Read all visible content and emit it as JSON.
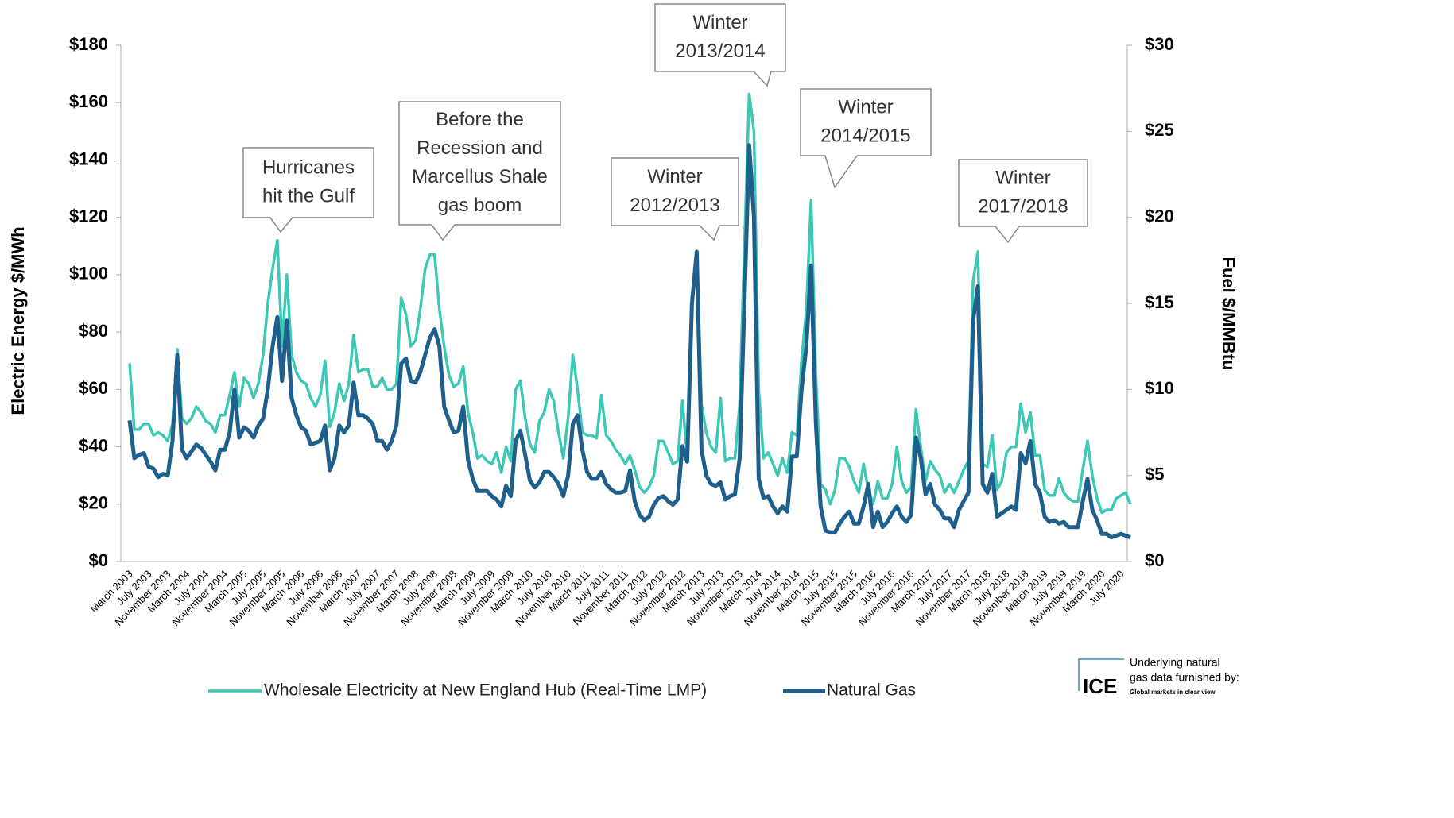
{
  "chart_data": {
    "type": "line",
    "ylabel": "Electric  Energy $/MWh",
    "y2label": "Fuel $/MMBtu",
    "ylim": [
      0,
      180
    ],
    "yticks": [
      {
        "value": 0,
        "label": "$0"
      },
      {
        "value": 20,
        "label": "$20"
      },
      {
        "value": 40,
        "label": "$40"
      },
      {
        "value": 60,
        "label": "$60"
      },
      {
        "value": 80,
        "label": "$80"
      },
      {
        "value": 100,
        "label": "$100"
      },
      {
        "value": 120,
        "label": "$120"
      },
      {
        "value": 140,
        "label": "$140"
      },
      {
        "value": 160,
        "label": "$160"
      },
      {
        "value": 180,
        "label": "$180"
      }
    ],
    "y2lim": [
      0,
      30
    ],
    "y2ticks": [
      {
        "value": 0,
        "label": "$0"
      },
      {
        "value": 5,
        "label": "$5"
      },
      {
        "value": 10,
        "label": "$10"
      },
      {
        "value": 15,
        "label": "$15"
      },
      {
        "value": 20,
        "label": "$20"
      },
      {
        "value": 25,
        "label": "$25"
      },
      {
        "value": 30,
        "label": "$30"
      }
    ],
    "categories": [
      "March 2003",
      null,
      null,
      null,
      "July 2003",
      null,
      null,
      null,
      "November 2003",
      null,
      null,
      null,
      "March 2004",
      null,
      null,
      null,
      "July 2004",
      null,
      null,
      null,
      "November 2004",
      null,
      null,
      null,
      "March 2005",
      null,
      null,
      null,
      "July 2005",
      null,
      null,
      null,
      "November 2005",
      null,
      null,
      null,
      "March 2006",
      null,
      null,
      null,
      "July 2006",
      null,
      null,
      null,
      "November 2006",
      null,
      null,
      null,
      "March 2007",
      null,
      null,
      null,
      "July 2007",
      null,
      null,
      null,
      "November 2007",
      null,
      null,
      null,
      "March 2008",
      null,
      null,
      null,
      "July 2008",
      null,
      null,
      null,
      "November 2008",
      null,
      null,
      null,
      "March 2009",
      null,
      null,
      null,
      "July 2009",
      null,
      null,
      null,
      "November 2009",
      null,
      null,
      null,
      "March 2010",
      null,
      null,
      null,
      "July 2010",
      null,
      null,
      null,
      "November 2010",
      null,
      null,
      null,
      "March 2011",
      null,
      null,
      null,
      "July 2011",
      null,
      null,
      null,
      "November 2011",
      null,
      null,
      null,
      "March 2012",
      null,
      null,
      null,
      "July 2012",
      null,
      null,
      null,
      "November 2012",
      null,
      null,
      null,
      "March 2013",
      null,
      null,
      null,
      "July 2013",
      null,
      null,
      null,
      "November 2013",
      null,
      null,
      null,
      "March 2014",
      null,
      null,
      null,
      "July 2014",
      null,
      null,
      null,
      "November 2014",
      null,
      null,
      null,
      "March 2015",
      null,
      null,
      null,
      "July 2015",
      null,
      null,
      null,
      "November 2015",
      null,
      null,
      null,
      "March 2016",
      null,
      null,
      null,
      "July 2016",
      null,
      null,
      null,
      "November 2016",
      null,
      null,
      null,
      "March 2017",
      null,
      null,
      null,
      "July 2017",
      null,
      null,
      null,
      "November 2017",
      null,
      null,
      null,
      "March 2018",
      null,
      null,
      null,
      "July 2018",
      null,
      null,
      null,
      "November 2018",
      null,
      null,
      null,
      "March 2019",
      null,
      null,
      null,
      "July 2019",
      null,
      null,
      null,
      "November 2019",
      null,
      null,
      null,
      "March 2020",
      null,
      null,
      null,
      "July 2020",
      null,
      null
    ],
    "series": [
      {
        "name": "Wholesale Electricity at New England Hub (Real-Time LMP)",
        "color": "#3cc8b4",
        "values": [
          69,
          46,
          46,
          48,
          48,
          44,
          45,
          44,
          42,
          48,
          74,
          50,
          48,
          50,
          54,
          52,
          49,
          48,
          45,
          51,
          51,
          58,
          66,
          54,
          64,
          62,
          57,
          62,
          72,
          90,
          102,
          112,
          75,
          100,
          72,
          66,
          63,
          62,
          57,
          54,
          58,
          70,
          47,
          52,
          62,
          56,
          62,
          79,
          66,
          67,
          67,
          61,
          61,
          64,
          60,
          60,
          62,
          92,
          86,
          75,
          77,
          88,
          102,
          107,
          107,
          88,
          75,
          65,
          61,
          62,
          68,
          52,
          45,
          36,
          37,
          35,
          34,
          38,
          31,
          40,
          35,
          60,
          63,
          50,
          41,
          38,
          49,
          52,
          60,
          56,
          45,
          36,
          50,
          72,
          60,
          45,
          44,
          44,
          43,
          58,
          44,
          42,
          39,
          37,
          34,
          37,
          32,
          26,
          24,
          26,
          30,
          42,
          42,
          38,
          34,
          35,
          56,
          37,
          90,
          108,
          55,
          45,
          40,
          38,
          57,
          35,
          36,
          36,
          55,
          110,
          163,
          150,
          60,
          36,
          38,
          34,
          30,
          36,
          31,
          45,
          44,
          70,
          88,
          126,
          65,
          27,
          25,
          20,
          25,
          36,
          36,
          33,
          28,
          24,
          34,
          25,
          20,
          28,
          22,
          22,
          27,
          40,
          28,
          24,
          26,
          53,
          40,
          28,
          35,
          32,
          30,
          24,
          27,
          24,
          28,
          32,
          35,
          98,
          108,
          34,
          33,
          44,
          25,
          28,
          38,
          40,
          40,
          55,
          45,
          52,
          37,
          37,
          25,
          23,
          23,
          29,
          24,
          22,
          21,
          21,
          32,
          42,
          30,
          22,
          17,
          18,
          18,
          22,
          23,
          24,
          20
        ]
      },
      {
        "name": "Natural Gas",
        "color": "#1f5f8b",
        "axis": "y2",
        "values": [
          8.2,
          6.0,
          6.2,
          6.3,
          5.5,
          5.4,
          4.9,
          5.1,
          5.0,
          7.0,
          12.0,
          6.5,
          6.0,
          6.4,
          6.8,
          6.6,
          6.2,
          5.8,
          5.3,
          6.5,
          6.5,
          7.5,
          10.0,
          7.2,
          7.8,
          7.6,
          7.2,
          7.9,
          8.3,
          10.0,
          12.5,
          14.2,
          10.5,
          14.0,
          9.5,
          8.5,
          7.8,
          7.6,
          6.8,
          6.9,
          7.0,
          7.9,
          5.3,
          6.0,
          7.9,
          7.5,
          7.9,
          10.4,
          8.5,
          8.5,
          8.3,
          8.0,
          7.0,
          7.0,
          6.5,
          7.0,
          7.9,
          11.5,
          11.8,
          10.5,
          10.4,
          11.0,
          12.0,
          13.0,
          13.5,
          12.5,
          9.0,
          8.2,
          7.5,
          7.6,
          9.0,
          5.9,
          4.8,
          4.1,
          4.1,
          4.1,
          3.8,
          3.6,
          3.2,
          4.4,
          3.8,
          7.0,
          7.6,
          6.2,
          4.7,
          4.3,
          4.6,
          5.2,
          5.2,
          4.9,
          4.5,
          3.8,
          5.0,
          8.0,
          8.5,
          6.5,
          5.2,
          4.8,
          4.8,
          5.2,
          4.5,
          4.2,
          4.0,
          4.0,
          4.1,
          5.3,
          3.5,
          2.7,
          2.4,
          2.6,
          3.3,
          3.7,
          3.8,
          3.5,
          3.3,
          3.6,
          6.7,
          5.8,
          15.0,
          18.0,
          6.5,
          5.0,
          4.5,
          4.4,
          4.6,
          3.6,
          3.8,
          3.9,
          6.0,
          15.0,
          24.2,
          20.0,
          4.8,
          3.7,
          3.8,
          3.2,
          2.8,
          3.2,
          2.9,
          6.1,
          6.1,
          10.0,
          12.5,
          17.2,
          8.0,
          3.2,
          1.8,
          1.7,
          1.7,
          2.2,
          2.6,
          2.9,
          2.2,
          2.2,
          3.2,
          4.5,
          2.0,
          2.9,
          2.0,
          2.3,
          2.8,
          3.2,
          2.6,
          2.3,
          2.7,
          7.2,
          6.0,
          3.9,
          4.5,
          3.3,
          3.0,
          2.5,
          2.5,
          2.0,
          3.0,
          3.5,
          4.0,
          14.0,
          16.0,
          4.5,
          4.0,
          5.1,
          2.6,
          2.8,
          3.0,
          3.2,
          3.0,
          6.3,
          5.7,
          7.0,
          4.5,
          4.0,
          2.6,
          2.3,
          2.4,
          2.2,
          2.3,
          2.0,
          2.0,
          2.0,
          3.5,
          4.8,
          3.0,
          2.4,
          1.6,
          1.6,
          1.4,
          1.5,
          1.6,
          1.5,
          1.4
        ]
      }
    ],
    "annotations": [
      {
        "lines": [
          "Hurricanes",
          "hit the Gulf"
        ]
      },
      {
        "lines": [
          "Before the",
          "Recession and",
          "Marcellus Shale",
          "gas boom"
        ]
      },
      {
        "lines": [
          "Winter",
          "2012/2013"
        ]
      },
      {
        "lines": [
          "Winter",
          "2013/2014"
        ]
      },
      {
        "lines": [
          "Winter",
          "2014/2015"
        ]
      },
      {
        "lines": [
          "Winter",
          "2017/2018"
        ]
      }
    ],
    "logo": {
      "mark": "ICE",
      "lines": [
        "Underlying natural",
        "gas data furnished by:"
      ],
      "tagline": "Global markets in clear view"
    }
  }
}
